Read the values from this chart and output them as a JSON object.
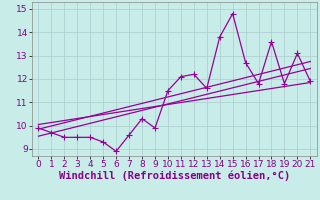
{
  "title": "",
  "xlabel": "Windchill (Refroidissement éolien,°C)",
  "xlabel_color": "#880088",
  "bg_color": "#c8ece8",
  "grid_color": "#aacccc",
  "line_color": "#990099",
  "xlim": [
    -0.5,
    21.5
  ],
  "ylim": [
    8.7,
    15.3
  ],
  "xticks": [
    0,
    1,
    2,
    3,
    4,
    5,
    6,
    7,
    8,
    9,
    10,
    11,
    12,
    13,
    14,
    15,
    16,
    17,
    18,
    19,
    20,
    21
  ],
  "yticks": [
    9,
    10,
    11,
    12,
    13,
    14,
    15
  ],
  "data_x": [
    0,
    1,
    2,
    3,
    4,
    5,
    6,
    7,
    8,
    9,
    10,
    11,
    12,
    13,
    14,
    15,
    16,
    17,
    18,
    19,
    20,
    21
  ],
  "data_y": [
    9.9,
    9.7,
    9.5,
    9.5,
    9.5,
    9.3,
    8.9,
    9.6,
    10.3,
    9.9,
    11.5,
    12.1,
    12.2,
    11.6,
    13.8,
    14.8,
    12.7,
    11.8,
    13.6,
    11.8,
    13.1,
    11.9
  ],
  "reg_line1": {
    "x": [
      0,
      21
    ],
    "y": [
      9.55,
      12.45
    ]
  },
  "reg_line2": {
    "x": [
      0,
      21
    ],
    "y": [
      9.85,
      12.75
    ]
  },
  "reg_line3": {
    "x": [
      0,
      21
    ],
    "y": [
      10.05,
      11.85
    ]
  },
  "tick_fontsize": 6.5,
  "xlabel_fontsize": 7.5,
  "marker_size": 2.5,
  "line_width": 0.9
}
